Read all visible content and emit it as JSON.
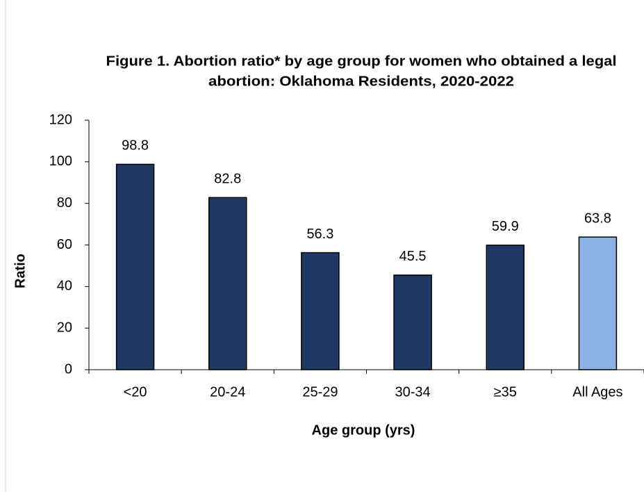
{
  "chart_data": {
    "type": "bar",
    "title": [
      "Figure 1. Abortion ratio* by age group for women who obtained a legal",
      "abortion: Oklahoma Residents, 2020-2022"
    ],
    "x_label": "Age group (yrs)",
    "y_label": "Ratio",
    "categories": [
      "<20",
      "20-24",
      "25-29",
      "30-34",
      "≥35",
      "All Ages"
    ],
    "values": [
      98.8,
      82.8,
      56.3,
      45.5,
      59.9,
      63.8
    ],
    "colors": [
      "#1f3864",
      "#1f3864",
      "#1f3864",
      "#1f3864",
      "#1f3864",
      "#8db3e2"
    ],
    "ylim": [
      0,
      120
    ],
    "yticks": [
      0,
      20,
      40,
      60,
      80,
      100,
      120
    ],
    "grid": false
  }
}
